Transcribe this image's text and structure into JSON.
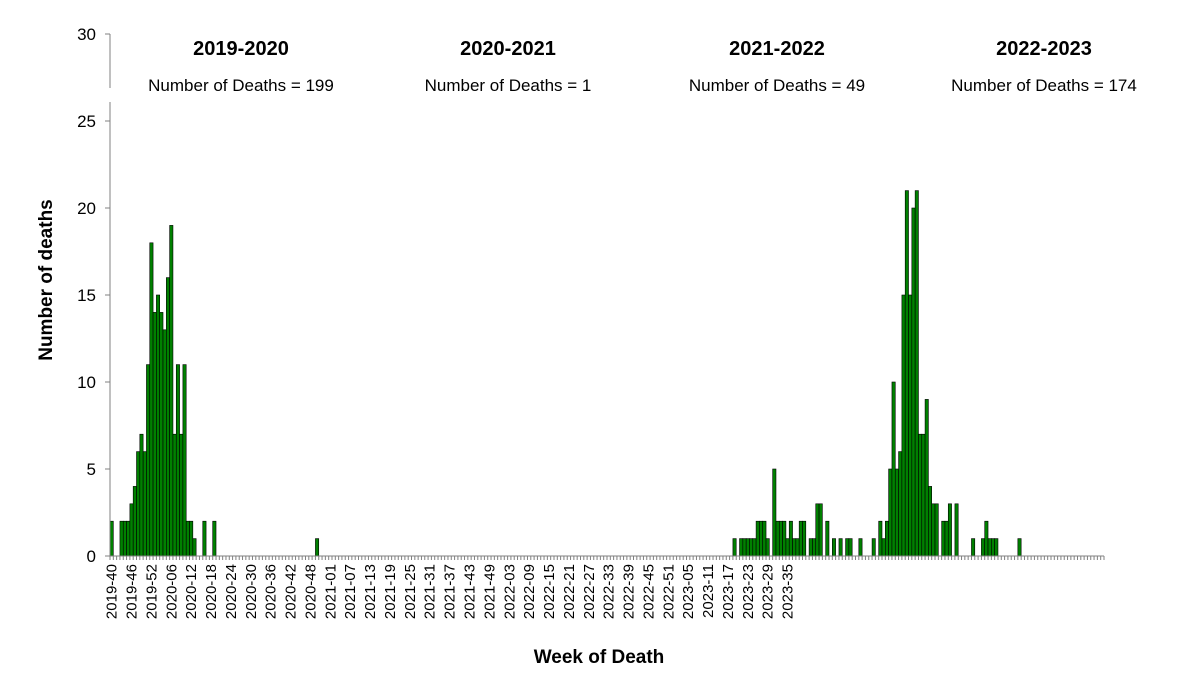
{
  "chart_data": {
    "type": "bar",
    "xlabel": "Week of Death",
    "ylabel": "Number of deaths",
    "ylim": [
      0,
      30
    ],
    "yticks": [
      0,
      5,
      10,
      15,
      20,
      25,
      30
    ],
    "grid": false,
    "start_week": "2019-40",
    "xtick_labels": [
      "2019-40",
      "2019-46",
      "2019-52",
      "2020-06",
      "2020-12",
      "2020-18",
      "2020-24",
      "2020-30",
      "2020-36",
      "2020-42",
      "2020-48",
      "2021-01",
      "2021-07",
      "2021-13",
      "2021-19",
      "2021-25",
      "2021-31",
      "2021-37",
      "2021-43",
      "2021-49",
      "2022-03",
      "2022-09",
      "2022-15",
      "2022-21",
      "2022-27",
      "2022-33",
      "2022-39",
      "2022-45",
      "2022-51",
      "2023-05",
      "2023-11",
      "2023-17",
      "2023-23",
      "2023-29",
      "2023-35"
    ],
    "values": [
      2,
      0,
      0,
      2,
      2,
      2,
      3,
      4,
      6,
      7,
      6,
      11,
      18,
      14,
      15,
      14,
      13,
      16,
      19,
      7,
      11,
      7,
      11,
      2,
      2,
      1,
      0,
      0,
      2,
      0,
      0,
      2,
      0,
      0,
      0,
      0,
      0,
      0,
      0,
      0,
      0,
      0,
      0,
      0,
      0,
      0,
      0,
      0,
      0,
      0,
      0,
      0,
      0,
      0,
      0,
      0,
      0,
      0,
      0,
      0,
      0,
      0,
      1,
      0,
      0,
      0,
      0,
      0,
      0,
      0,
      0,
      0,
      0,
      0,
      0,
      0,
      0,
      0,
      0,
      0,
      0,
      0,
      0,
      0,
      0,
      0,
      0,
      0,
      0,
      0,
      0,
      0,
      0,
      0,
      0,
      0,
      0,
      0,
      0,
      0,
      0,
      0,
      0,
      0,
      0,
      0,
      0,
      0,
      0,
      0,
      0,
      0,
      0,
      0,
      0,
      0,
      0,
      0,
      0,
      0,
      0,
      0,
      0,
      0,
      0,
      0,
      0,
      0,
      0,
      0,
      0,
      0,
      0,
      0,
      0,
      0,
      0,
      0,
      0,
      0,
      0,
      0,
      0,
      0,
      0,
      0,
      0,
      0,
      0,
      0,
      0,
      0,
      0,
      0,
      0,
      0,
      0,
      0,
      0,
      0,
      0,
      0,
      0,
      0,
      0,
      0,
      0,
      0,
      0,
      0,
      0,
      0,
      0,
      0,
      0,
      0,
      0,
      0,
      0,
      0,
      0,
      0,
      0,
      0,
      0,
      0,
      0,
      0,
      1,
      0,
      1,
      1,
      1,
      1,
      1,
      2,
      2,
      2,
      1,
      0,
      5,
      2,
      2,
      2,
      1,
      2,
      1,
      1,
      2,
      2,
      0,
      1,
      1,
      3,
      3,
      0,
      2,
      0,
      1,
      0,
      1,
      0,
      1,
      1,
      0,
      0,
      1,
      0,
      0,
      0,
      1,
      0,
      2,
      1,
      2,
      5,
      10,
      5,
      6,
      15,
      21,
      15,
      20,
      21,
      7,
      7,
      9,
      4,
      3,
      3,
      0,
      2,
      2,
      3,
      0,
      3,
      0,
      0,
      0,
      0,
      1,
      0,
      0,
      1,
      2,
      1,
      1,
      1,
      0,
      0,
      0,
      0,
      0,
      0,
      1
    ],
    "seasons": [
      {
        "label": "2019-2020",
        "deaths_text": "Number of Deaths = 199"
      },
      {
        "label": "2020-2021",
        "deaths_text": "Number of Deaths = 1"
      },
      {
        "label": "2021-2022",
        "deaths_text": "Number of Deaths = 49"
      },
      {
        "label": "2022-2023",
        "deaths_text": "Number of Deaths = 174"
      }
    ],
    "colors": {
      "bar": "#008000",
      "bar_edge": "#000000",
      "axis": "#808080"
    }
  }
}
